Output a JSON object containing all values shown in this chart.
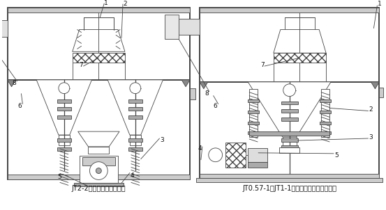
{
  "fig_width": 5.53,
  "fig_height": 3.02,
  "dpi": 100,
  "line_color": "#444444",
  "label_color": "#111111",
  "caption_left": "JT2-2锯齿波跳汰机结构图",
  "caption_right": "JT0.57-1、JT1-1锯齿波跳汰机结构示意图",
  "caption_fontsize": 7.0,
  "label_fontsize": 6.5
}
